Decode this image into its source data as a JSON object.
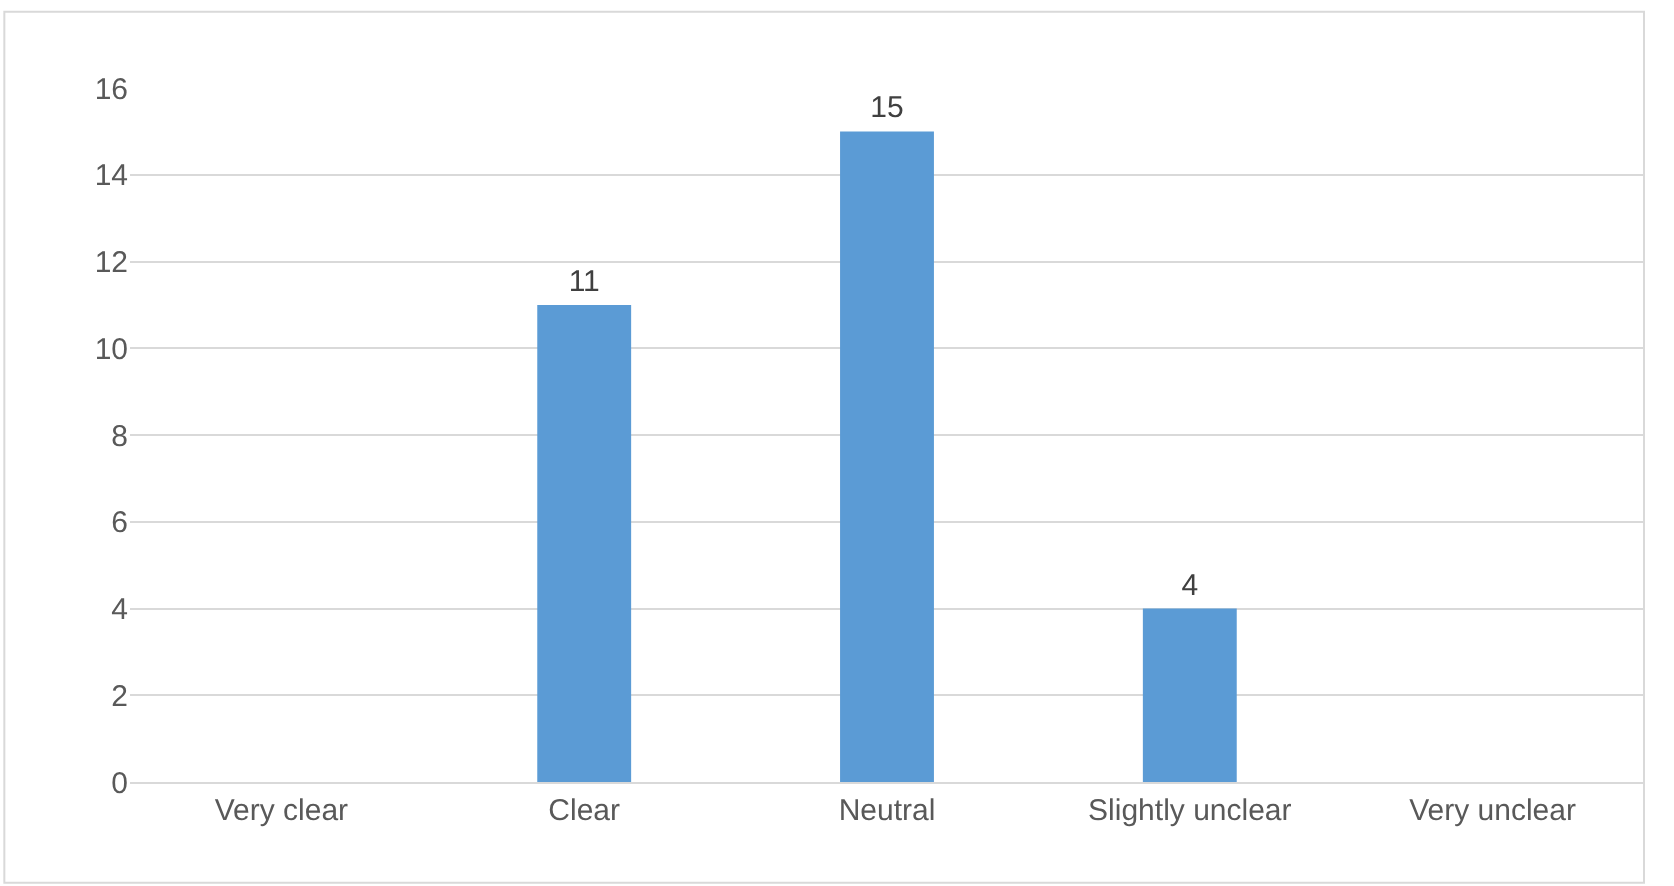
{
  "chart_data": {
    "type": "bar",
    "categories": [
      "Very clear",
      "Clear",
      "Neutral",
      "Slightly unclear",
      "Very unclear"
    ],
    "values": [
      0,
      11,
      15,
      4,
      0
    ],
    "value_labels": [
      null,
      "11",
      "15",
      "4",
      null
    ],
    "color": "#5b9bd5",
    "ylim": [
      0,
      16
    ],
    "yticks": [
      0,
      2,
      4,
      6,
      8,
      10,
      12,
      14,
      16
    ],
    "grid": "y"
  }
}
